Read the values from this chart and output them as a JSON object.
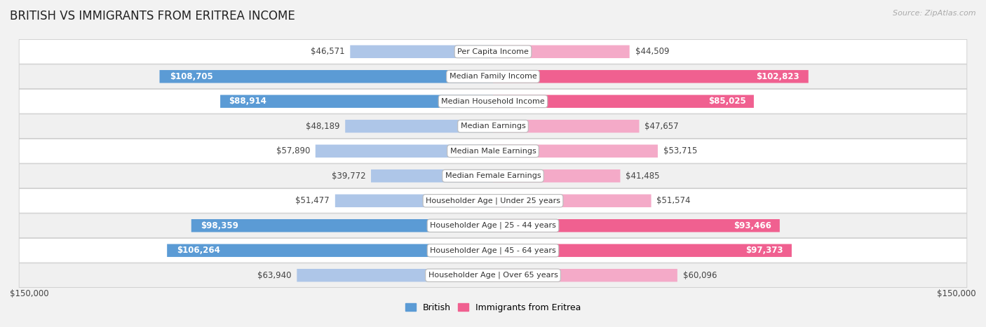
{
  "title": "BRITISH VS IMMIGRANTS FROM ERITREA INCOME",
  "source": "Source: ZipAtlas.com",
  "categories": [
    "Per Capita Income",
    "Median Family Income",
    "Median Household Income",
    "Median Earnings",
    "Median Male Earnings",
    "Median Female Earnings",
    "Householder Age | Under 25 years",
    "Householder Age | 25 - 44 years",
    "Householder Age | 45 - 64 years",
    "Householder Age | Over 65 years"
  ],
  "british_values": [
    46571,
    108705,
    88914,
    48189,
    57890,
    39772,
    51477,
    98359,
    106264,
    63940
  ],
  "eritrea_values": [
    44509,
    102823,
    85025,
    47657,
    53715,
    41485,
    51574,
    93466,
    97373,
    60096
  ],
  "british_labels": [
    "$46,571",
    "$108,705",
    "$88,914",
    "$48,189",
    "$57,890",
    "$39,772",
    "$51,477",
    "$98,359",
    "$106,264",
    "$63,940"
  ],
  "eritrea_labels": [
    "$44,509",
    "$102,823",
    "$85,025",
    "$47,657",
    "$53,715",
    "$41,485",
    "$51,574",
    "$93,466",
    "$97,373",
    "$60,096"
  ],
  "max_value": 150000,
  "british_color_light": "#aec6e8",
  "british_color_dark": "#5b9bd5",
  "eritrea_color_light": "#f4aac8",
  "eritrea_color_dark": "#f06090",
  "bar_height": 0.52,
  "background_color": "#f2f2f2",
  "row_colors": [
    "#ffffff",
    "#f0f0f0"
  ],
  "label_fontsize": 8.5,
  "title_fontsize": 12,
  "category_fontsize": 8.0,
  "legend_fontsize": 9,
  "xlabel_left": "$150,000",
  "xlabel_right": "$150,000",
  "large_threshold": 65000
}
